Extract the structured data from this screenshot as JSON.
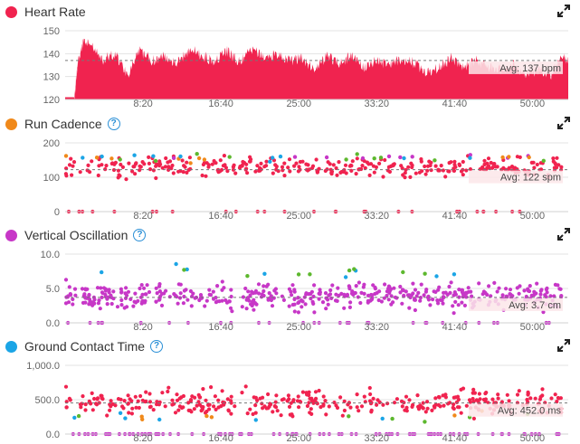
{
  "colors": {
    "heart_rate": "#f0234f",
    "cadence": "#f0891a",
    "oscillation": "#c737c7",
    "contact": "#1ba5e6",
    "red": "#f0234f",
    "green": "#5db82e",
    "blue": "#1ba5e6",
    "purple": "#c737c7",
    "orange": "#f0891a"
  },
  "chart_data": [
    {
      "type": "area",
      "title": "Heart Rate",
      "x_ticks": [
        "8:20",
        "16:40",
        "25:00",
        "33:20",
        "41:40",
        "50:00"
      ],
      "x_tick_values": [
        500,
        1000,
        1500,
        2000,
        2500,
        3000
      ],
      "x_range": [
        0,
        3230
      ],
      "y_ticks": [
        "150",
        "140",
        "130",
        "120"
      ],
      "y_tick_values": [
        150,
        140,
        130,
        120
      ],
      "ylim": [
        120,
        150
      ],
      "average_label": "Avg: 137 bpm",
      "average": 137,
      "series": [
        {
          "x": [
            0,
            60,
            80,
            120,
            160,
            240,
            320,
            400,
            480,
            560,
            640,
            720,
            800,
            880,
            960,
            1040,
            1120,
            1200,
            1280,
            1360,
            1440,
            1520,
            1600,
            1680,
            1760,
            1840,
            1920,
            2000,
            2080,
            2160,
            2240,
            2320,
            2400,
            2480,
            2560,
            2640,
            2720,
            2800,
            2880,
            2960,
            3040,
            3120,
            3200,
            3230
          ],
          "y": [
            121,
            121,
            136,
            146,
            144,
            137,
            140,
            131,
            141,
            137,
            139,
            136,
            142,
            139,
            137,
            141,
            136,
            142,
            138,
            140,
            137,
            138,
            133,
            139,
            136,
            139,
            134,
            137,
            135,
            138,
            136,
            132,
            134,
            138,
            134,
            137,
            134,
            133,
            135,
            131,
            133,
            131,
            139,
            136
          ]
        }
      ]
    },
    {
      "type": "scatter",
      "title": "Run Cadence",
      "x_ticks": [
        "8:20",
        "16:40",
        "25:00",
        "33:20",
        "41:40",
        "50:00"
      ],
      "x_tick_values": [
        500,
        1000,
        1500,
        2000,
        2500,
        3000
      ],
      "x_range": [
        0,
        3230
      ],
      "y_ticks": [
        "200",
        "100",
        "0"
      ],
      "y_tick_values": [
        200,
        100,
        0
      ],
      "ylim": [
        0,
        200
      ],
      "average_label": "Avg: 122 spm",
      "average": 122,
      "seed": 11,
      "main": {
        "center": 130,
        "spread": 18,
        "count": 330
      },
      "upper": {
        "center": 158,
        "spread": 8,
        "count": 40,
        "colors": [
          "green",
          "orange",
          "blue",
          "purple"
        ]
      },
      "zero": {
        "count": 28
      },
      "series": [
        {
          "name": "red"
        },
        {
          "name": "green"
        },
        {
          "name": "orange"
        },
        {
          "name": "blue"
        },
        {
          "name": "purple"
        }
      ]
    },
    {
      "type": "scatter",
      "title": "Vertical Oscillation",
      "x_ticks": [
        "8:20",
        "16:40",
        "25:00",
        "33:20",
        "41:40",
        "50:00"
      ],
      "x_tick_values": [
        500,
        1000,
        1500,
        2000,
        2500,
        3000
      ],
      "x_range": [
        0,
        3230
      ],
      "y_ticks": [
        "10.0",
        "5.0",
        "0.0"
      ],
      "y_tick_values": [
        10,
        5,
        0
      ],
      "ylim": [
        0,
        10
      ],
      "average_label": "Avg: 3.7 cm",
      "average": 3.7,
      "seed": 23,
      "main": {
        "center": 3.8,
        "spread": 1.1,
        "count": 480
      },
      "upper": {
        "center": 7.4,
        "spread": 0.6,
        "count": 16,
        "colors": [
          "blue",
          "green"
        ]
      },
      "zero": {
        "count": 30
      }
    },
    {
      "type": "scatter",
      "title": "Ground Contact Time",
      "x_ticks": [
        "8:20",
        "16:40",
        "25:00",
        "33:20",
        "41:40",
        "50:00"
      ],
      "x_tick_values": [
        500,
        1000,
        1500,
        2000,
        2500,
        3000
      ],
      "x_range": [
        0,
        3230
      ],
      "y_ticks": [
        "1,000.0",
        "500.0",
        "0.0"
      ],
      "y_tick_values": [
        1000,
        500,
        0
      ],
      "ylim": [
        0,
        1000
      ],
      "average_label": "Avg: 452.0 ms",
      "average": 452,
      "seed": 37,
      "main": {
        "center": 460,
        "spread": 110,
        "count": 360
      },
      "upper": {
        "center": 250,
        "spread": 40,
        "count": 18,
        "colors": [
          "blue",
          "green",
          "orange"
        ]
      },
      "zero": {
        "count": 90
      }
    }
  ],
  "panels": [
    {
      "title": "Heart Rate",
      "color": "#f0234f",
      "help": false
    },
    {
      "title": "Run Cadence",
      "color": "#f0891a",
      "help": true
    },
    {
      "title": "Vertical Oscillation",
      "color": "#c737c7",
      "help": true
    },
    {
      "title": "Ground Contact Time",
      "color": "#1ba5e6",
      "help": true
    }
  ],
  "icons": {
    "expand": "expand-icon",
    "help": "help-icon",
    "help_glyph": "?"
  }
}
